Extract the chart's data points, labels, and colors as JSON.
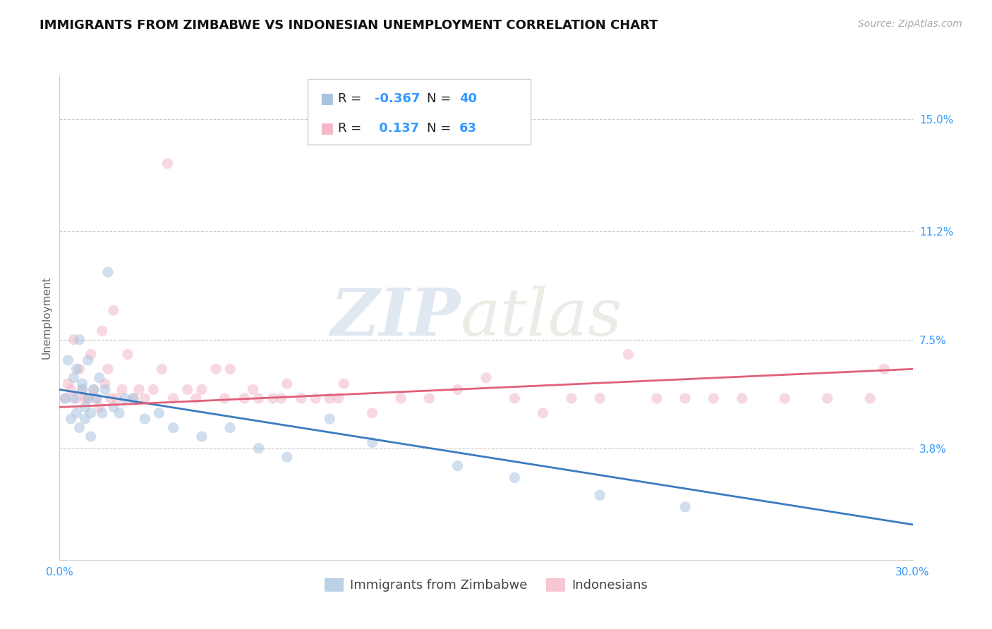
{
  "title": "IMMIGRANTS FROM ZIMBABWE VS INDONESIAN UNEMPLOYMENT CORRELATION CHART",
  "source": "Source: ZipAtlas.com",
  "xlabel": "",
  "ylabel": "Unemployment",
  "xlim": [
    0.0,
    30.0
  ],
  "ylim": [
    0.0,
    16.5
  ],
  "yticks": [
    3.8,
    7.5,
    11.2,
    15.0
  ],
  "xticks": [
    0.0,
    30.0
  ],
  "xtick_labels": [
    "0.0%",
    "30.0%"
  ],
  "ytick_labels": [
    "3.8%",
    "7.5%",
    "11.2%",
    "15.0%"
  ],
  "background_color": "#ffffff",
  "watermark_zip": "ZIP",
  "watermark_atlas": "atlas",
  "series1_color": "#aac4e0",
  "series2_color": "#f4b8c8",
  "line1_color": "#3a7bbf",
  "line2_color": "#e0607a",
  "series1_label": "Immigrants from Zimbabwe",
  "series2_label": "Indonesians",
  "r1": "-0.367",
  "n1": "40",
  "r2": " 0.137",
  "n2": "63",
  "title_fontsize": 13,
  "source_fontsize": 10,
  "axis_label_fontsize": 11,
  "tick_fontsize": 11,
  "legend_fontsize": 13,
  "marker_size": 11,
  "marker_alpha": 0.55,
  "zimbabwe_x": [
    0.2,
    0.3,
    0.4,
    0.5,
    0.5,
    0.6,
    0.6,
    0.7,
    0.7,
    0.8,
    0.8,
    0.9,
    0.9,
    1.0,
    1.0,
    1.1,
    1.1,
    1.2,
    1.3,
    1.4,
    1.5,
    1.6,
    1.7,
    1.9,
    2.1,
    2.3,
    2.6,
    3.0,
    3.5,
    4.0,
    5.0,
    6.0,
    7.0,
    8.0,
    9.5,
    11.0,
    14.0,
    16.0,
    19.0,
    22.0
  ],
  "zimbabwe_y": [
    5.5,
    6.8,
    4.8,
    5.5,
    6.2,
    5.0,
    6.5,
    4.5,
    7.5,
    5.8,
    6.0,
    5.2,
    4.8,
    5.5,
    6.8,
    5.0,
    4.2,
    5.8,
    5.5,
    6.2,
    5.0,
    5.8,
    9.8,
    5.2,
    5.0,
    5.5,
    5.5,
    4.8,
    5.0,
    4.5,
    4.2,
    4.5,
    3.8,
    3.5,
    4.8,
    4.0,
    3.2,
    2.8,
    2.2,
    1.8
  ],
  "indonesian_x": [
    0.2,
    0.3,
    0.4,
    0.5,
    0.6,
    0.7,
    0.8,
    0.9,
    1.0,
    1.1,
    1.2,
    1.3,
    1.4,
    1.5,
    1.6,
    1.7,
    1.8,
    1.9,
    2.0,
    2.2,
    2.4,
    2.6,
    2.8,
    3.0,
    3.3,
    3.6,
    4.0,
    4.5,
    5.0,
    5.5,
    6.0,
    6.5,
    7.0,
    7.5,
    8.0,
    8.5,
    9.0,
    9.5,
    10.0,
    11.0,
    12.0,
    13.0,
    14.0,
    15.0,
    16.0,
    17.0,
    18.0,
    19.0,
    20.0,
    21.0,
    22.0,
    23.0,
    24.0,
    25.5,
    27.0,
    28.5,
    3.8,
    4.8,
    5.8,
    6.8,
    7.8,
    9.8,
    29.0
  ],
  "indonesian_y": [
    5.5,
    6.0,
    5.8,
    7.5,
    5.5,
    6.5,
    5.8,
    5.5,
    5.5,
    7.0,
    5.8,
    5.5,
    5.2,
    7.8,
    6.0,
    6.5,
    5.5,
    8.5,
    5.5,
    5.8,
    7.0,
    5.5,
    5.8,
    5.5,
    5.8,
    6.5,
    5.5,
    5.8,
    5.8,
    6.5,
    6.5,
    5.5,
    5.5,
    5.5,
    6.0,
    5.5,
    5.5,
    5.5,
    6.0,
    5.0,
    5.5,
    5.5,
    5.8,
    6.2,
    5.5,
    5.0,
    5.5,
    5.5,
    7.0,
    5.5,
    5.5,
    5.5,
    5.5,
    5.5,
    5.5,
    5.5,
    13.5,
    5.5,
    5.5,
    5.8,
    5.5,
    5.5,
    6.5
  ],
  "line1_x0": 0.0,
  "line1_y0": 5.8,
  "line1_x1": 30.0,
  "line1_y1": 1.2,
  "line2_x0": 0.0,
  "line2_y0": 5.2,
  "line2_x1": 30.0,
  "line2_y1": 6.5
}
